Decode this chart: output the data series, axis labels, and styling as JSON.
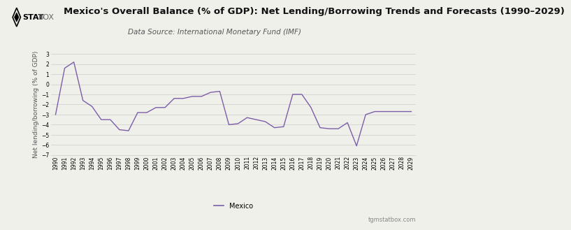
{
  "title": "Mexico's Overall Balance (% of GDP): Net Lending/Borrowing Trends and Forecasts (1990–2029)",
  "subtitle": "Data Source: International Monetary Fund (IMF)",
  "ylabel": "Net lending/borrowing (% of GDP)",
  "watermark": "tgmstatbox.com",
  "legend_label": "Mexico",
  "line_color": "#7B5EA7",
  "background_color": "#F0F0EB",
  "years": [
    1990,
    1991,
    1992,
    1993,
    1994,
    1995,
    1996,
    1997,
    1998,
    1999,
    2000,
    2001,
    2002,
    2003,
    2004,
    2005,
    2006,
    2007,
    2008,
    2009,
    2010,
    2011,
    2012,
    2013,
    2014,
    2015,
    2016,
    2017,
    2018,
    2019,
    2020,
    2021,
    2022,
    2023,
    2024,
    2025,
    2026,
    2027,
    2028,
    2029
  ],
  "values": [
    -3.0,
    1.6,
    2.2,
    -1.6,
    -2.2,
    -3.5,
    -3.5,
    -4.5,
    -4.6,
    -2.8,
    -2.8,
    -2.3,
    -2.3,
    -1.4,
    -1.4,
    -1.2,
    -1.2,
    -0.8,
    -0.7,
    -4.0,
    -3.9,
    -3.3,
    -3.5,
    -3.7,
    -4.3,
    -4.2,
    -1.0,
    -1.0,
    -2.3,
    -4.3,
    -4.4,
    -4.4,
    -3.8,
    -6.1,
    -3.0,
    -2.7,
    -2.7,
    -2.7,
    -2.7,
    -2.7
  ],
  "ylim": [
    -7,
    3
  ],
  "yticks": [
    -7,
    -6,
    -5,
    -4,
    -3,
    -2,
    -1,
    0,
    1,
    2,
    3
  ],
  "grid_color": "#CCCCCC",
  "title_fontsize": 9.5,
  "subtitle_fontsize": 7.5,
  "ylabel_fontsize": 6.5,
  "tick_fontsize": 5.5,
  "watermark_fontsize": 6,
  "legend_fontsize": 7
}
